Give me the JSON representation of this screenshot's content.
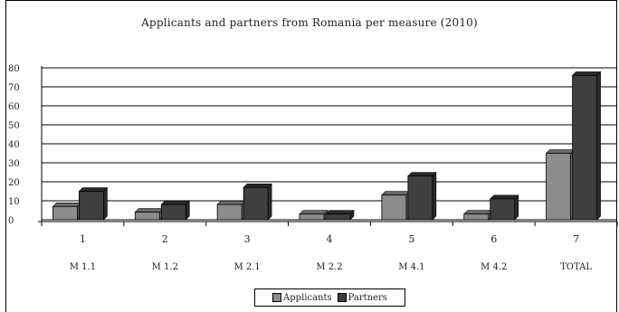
{
  "chart_data": {
    "type": "bar",
    "title": "Applicants and partners from Romania per measure (2010)",
    "categories": [
      "1",
      "2",
      "3",
      "4",
      "5",
      "6",
      "7"
    ],
    "category_sublabels": [
      "M 1.1",
      "M 1.2",
      "M 2.1",
      "M 2.2",
      "M 4.1",
      "M 4.2",
      "TOTAL"
    ],
    "series": [
      {
        "name": "Applicants",
        "values": [
          7,
          4,
          8,
          3,
          13,
          3,
          35
        ],
        "color": "#8c8c8c"
      },
      {
        "name": "Partners",
        "values": [
          15,
          8,
          17,
          3,
          23,
          11,
          76
        ],
        "color": "#3f3f3f"
      }
    ],
    "ylim": [
      0,
      80
    ],
    "yticks": [
      0,
      10,
      20,
      30,
      40,
      50,
      60,
      70,
      80
    ],
    "grid": true,
    "legend_position": "bottom"
  }
}
